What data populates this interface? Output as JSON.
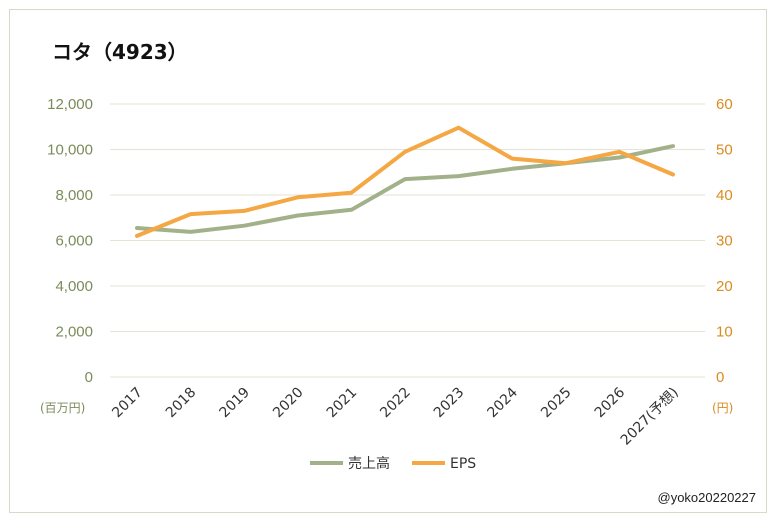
{
  "chart_data": {
    "type": "line",
    "title": "コタ（4923）",
    "categories": [
      "2017",
      "2018",
      "2019",
      "2020",
      "2021",
      "2022",
      "2023",
      "2024",
      "2025",
      "2026",
      "2027(予想)"
    ],
    "y_left": {
      "unit": "(百万円)",
      "range": [
        0,
        12000
      ],
      "ticks": [
        "0",
        "2,000",
        "4,000",
        "6,000",
        "8,000",
        "10,000",
        "12,000"
      ],
      "color": "#7a8c5a"
    },
    "y_right": {
      "unit": "(円)",
      "range": [
        0,
        60
      ],
      "ticks": [
        "0",
        "10",
        "20",
        "30",
        "40",
        "50",
        "60"
      ],
      "color": "#d98c1f"
    },
    "series": [
      {
        "name": "売上高",
        "axis": "left",
        "color": "#a3b18a",
        "values": [
          6550,
          6380,
          6650,
          7100,
          7350,
          8700,
          8830,
          9150,
          9400,
          9650,
          10150
        ]
      },
      {
        "name": "EPS",
        "axis": "right",
        "color": "#f4a742",
        "values": [
          31.0,
          35.8,
          36.5,
          39.5,
          40.5,
          49.5,
          54.8,
          48.0,
          47.0,
          49.5,
          44.5
        ]
      }
    ],
    "grid": true,
    "legend": "bottom"
  },
  "credit": "@yoko20220227"
}
